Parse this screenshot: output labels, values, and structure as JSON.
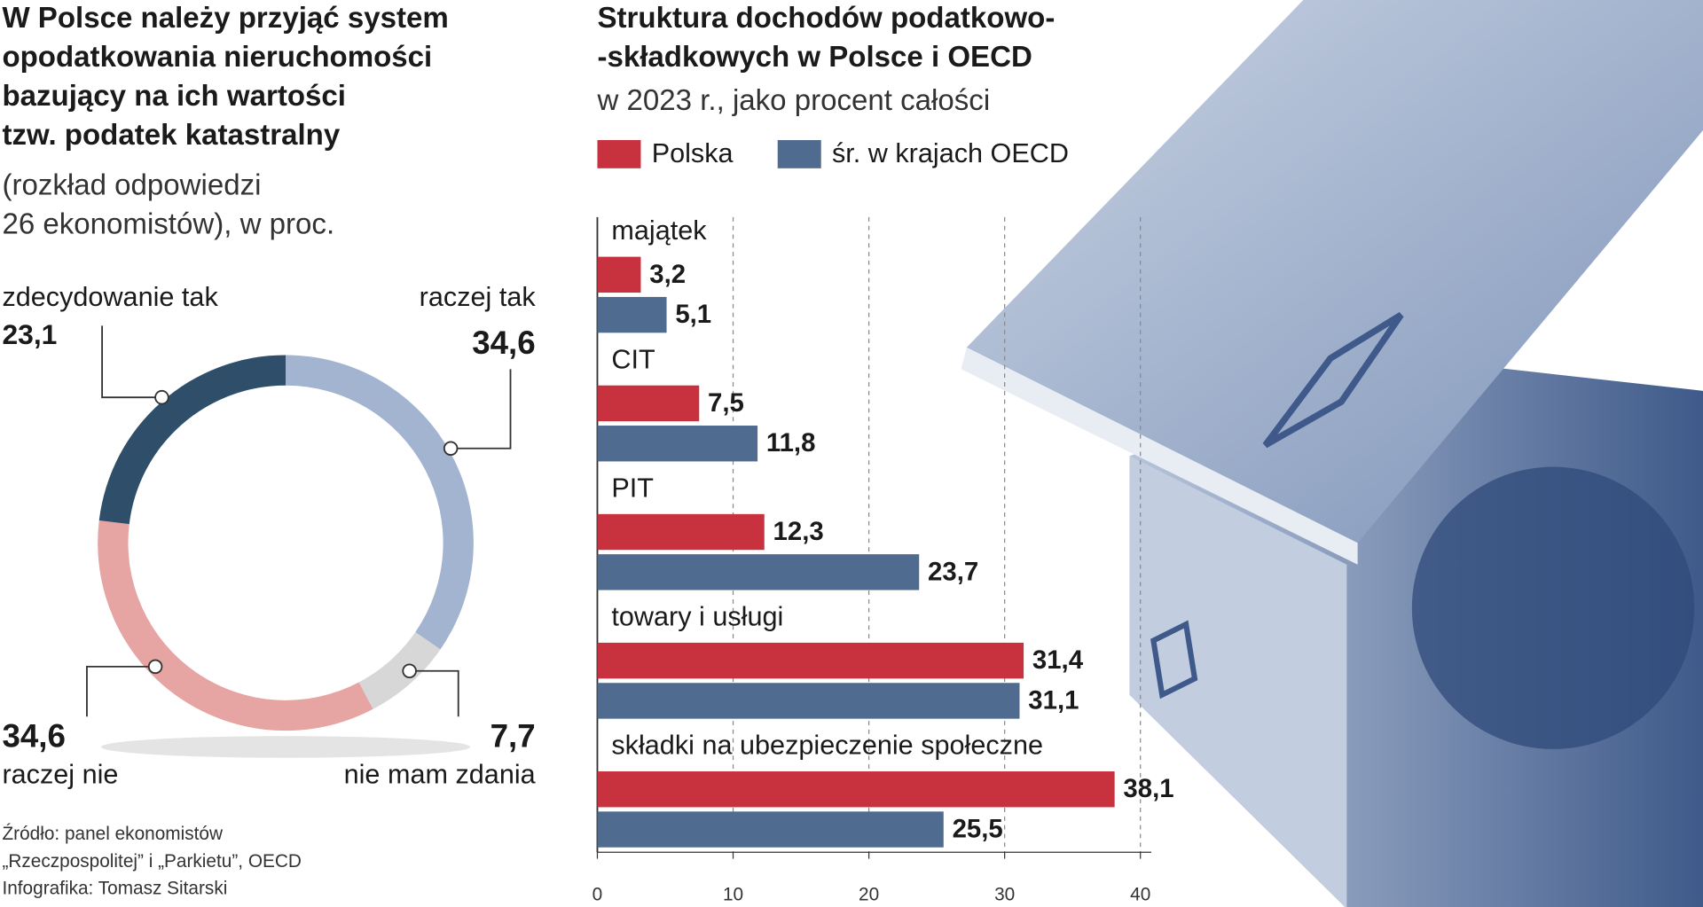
{
  "chart_data": [
    {
      "type": "pie",
      "title": [
        "W Polsce należy przyjąć system",
        "opodatkowania nieruchomości",
        "bazujący na ich wartości",
        "tzw. podatek  katastralny"
      ],
      "subtitle": [
        "(rozkład odpowiedzi",
        "26 ekonomistów), w proc."
      ],
      "categories": [
        "raczej tak",
        "nie mam zdania",
        "raczej nie",
        "zdecydowanie tak"
      ],
      "values": [
        34.6,
        7.7,
        34.6,
        23.1
      ],
      "value_labels": [
        "34,6",
        "7,7",
        "34,6",
        "23,1"
      ],
      "colors": [
        "#a3b4d0",
        "#d7d7d7",
        "#e6a4a3",
        "#2f4e69"
      ],
      "source": [
        "Źródło: panel ekonomistów",
        "„Rzeczpospolitej” i „Parkietu”, OECD",
        "Infografika: Tomasz Sitarski"
      ]
    },
    {
      "type": "hbar",
      "title": [
        "Struktura dochodów podatkowo-",
        "-składkowych w Polsce i OECD"
      ],
      "subtitle": "w 2023 r., jako procent całości",
      "categories": [
        "majątek",
        "CIT",
        "PIT",
        "towary i usługi",
        "składki na ubezpieczenie społeczne"
      ],
      "series": [
        {
          "name": "Polska",
          "color": "#c8323f",
          "values": [
            3.2,
            7.5,
            12.3,
            31.4,
            38.1
          ],
          "value_labels": [
            "3,2",
            "7,5",
            "12,3",
            "31,4",
            "38,1"
          ]
        },
        {
          "name": "śr. w krajach OECD",
          "color": "#4f6b8f",
          "values": [
            5.1,
            11.8,
            23.7,
            31.1,
            25.5
          ],
          "value_labels": [
            "5,1",
            "11,8",
            "23,7",
            "31,1",
            "25,5"
          ]
        }
      ],
      "xlim": [
        0,
        40
      ],
      "xticks": [
        0,
        10,
        20,
        30,
        40
      ],
      "grid": true
    }
  ]
}
